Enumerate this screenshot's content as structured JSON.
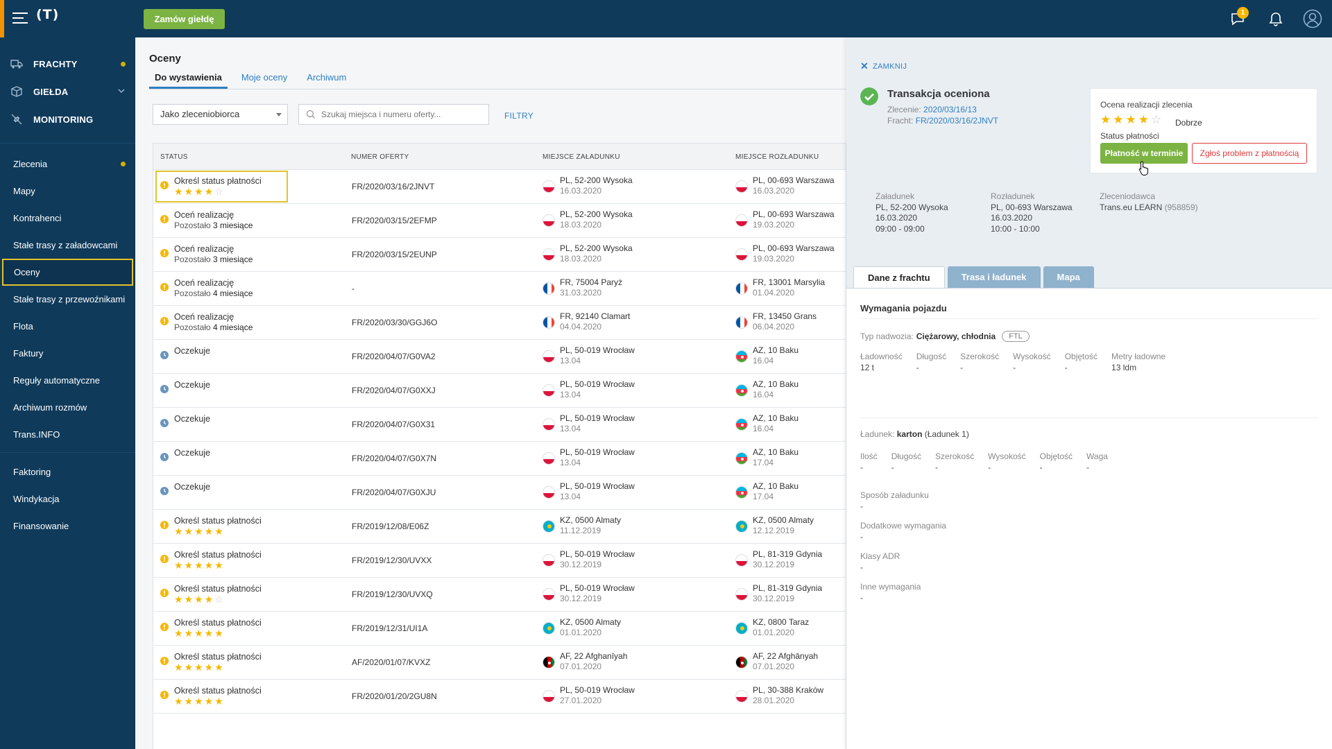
{
  "topbar": {
    "logo": "(T)",
    "order_button": "Zamów giełdę",
    "messages_badge": "1"
  },
  "sidebar": {
    "main": [
      {
        "label": "FRACHTY",
        "icon": "truck-icon",
        "dot": true
      },
      {
        "label": "GIEŁDA",
        "icon": "box-icon",
        "chevron": true
      },
      {
        "label": "MONITORING",
        "icon": "satellite-icon"
      }
    ],
    "sub1": [
      {
        "label": "Zlecenia",
        "dot": true
      },
      {
        "label": "Mapy"
      },
      {
        "label": "Kontrahenci"
      },
      {
        "label": "Stałe trasy z załadowcami"
      },
      {
        "label": "Oceny",
        "active": true
      },
      {
        "label": "Stałe trasy z przewoźnikami"
      },
      {
        "label": "Flota"
      },
      {
        "label": "Faktury"
      },
      {
        "label": "Reguły automatyczne"
      },
      {
        "label": "Archiwum rozmów"
      },
      {
        "label": "Trans.INFO"
      }
    ],
    "sub2": [
      {
        "label": "Faktoring"
      },
      {
        "label": "Windykacja"
      },
      {
        "label": "Finansowanie"
      }
    ]
  },
  "main": {
    "title": "Oceny",
    "tabs": [
      "Do wystawienia",
      "Moje oceny",
      "Archiwum"
    ],
    "select_value": "Jako zleceniobiorca",
    "search_placeholder": "Szukaj miejsca i numeru oferty...",
    "filters": "FILTRY",
    "columns": [
      "STATUS",
      "NUMER OFERTY",
      "MIEJSCE ZAŁADUNKU",
      "MIEJSCE ROZŁADUNKU"
    ],
    "rows": [
      {
        "kind": "warn",
        "status": "Określ status płatności",
        "stars": 4,
        "offer": "FR/2020/03/16/2JNVT",
        "load_flag": "pl",
        "load": "PL, 52-200 Wysoka",
        "load_date": "16.03.2020",
        "unload_flag": "pl",
        "unload": "PL, 00-693 Warszawa",
        "unload_date": "16.03.2020"
      },
      {
        "kind": "warn",
        "status": "Oceń realizację",
        "sub_prefix": "Pozostało",
        "sub_value": "3 miesiące",
        "offer": "FR/2020/03/15/2EFMP",
        "load_flag": "pl",
        "load": "PL, 52-200 Wysoka",
        "load_date": "18.03.2020",
        "unload_flag": "pl",
        "unload": "PL, 00-693 Warszawa",
        "unload_date": "19.03.2020"
      },
      {
        "kind": "warn",
        "status": "Oceń realizację",
        "sub_prefix": "Pozostało",
        "sub_value": "3 miesiące",
        "offer": "FR/2020/03/15/2EUNP",
        "load_flag": "pl",
        "load": "PL, 52-200 Wysoka",
        "load_date": "18.03.2020",
        "unload_flag": "pl",
        "unload": "PL, 00-693 Warszawa",
        "unload_date": "19.03.2020"
      },
      {
        "kind": "warn",
        "status": "Oceń realizację",
        "sub_prefix": "Pozostało",
        "sub_value": "4 miesiące",
        "offer": "-",
        "load_flag": "fr",
        "load": "FR, 75004 Paryż",
        "load_date": "31.03.2020",
        "unload_flag": "fr",
        "unload": "FR, 13001 Marsylia",
        "unload_date": "01.04.2020"
      },
      {
        "kind": "warn",
        "status": "Oceń realizację",
        "sub_prefix": "Pozostało",
        "sub_value": "4 miesiące",
        "offer": "FR/2020/03/30/GGJ6O",
        "load_flag": "fr",
        "load": "FR, 92140 Clamart",
        "load_date": "04.04.2020",
        "unload_flag": "fr",
        "unload": "FR, 13450 Grans",
        "unload_date": "06.04.2020"
      },
      {
        "kind": "clock",
        "status": "Oczekuje",
        "offer": "FR/2020/04/07/G0VA2",
        "load_flag": "pl",
        "load": "PL, 50-019 Wrocław",
        "load_date": "13.04",
        "unload_flag": "az",
        "unload": "AZ, 10 Baku",
        "unload_date": "16.04"
      },
      {
        "kind": "clock",
        "status": "Oczekuje",
        "offer": "FR/2020/04/07/G0XXJ",
        "load_flag": "pl",
        "load": "PL, 50-019 Wrocław",
        "load_date": "13.04",
        "unload_flag": "az",
        "unload": "AZ, 10 Baku",
        "unload_date": "16.04"
      },
      {
        "kind": "clock",
        "status": "Oczekuje",
        "offer": "FR/2020/04/07/G0X31",
        "load_flag": "pl",
        "load": "PL, 50-019 Wrocław",
        "load_date": "13.04",
        "unload_flag": "az",
        "unload": "AZ, 10 Baku",
        "unload_date": "16.04"
      },
      {
        "kind": "clock",
        "status": "Oczekuje",
        "offer": "FR/2020/04/07/G0X7N",
        "load_flag": "pl",
        "load": "PL, 50-019 Wrocław",
        "load_date": "13.04",
        "unload_flag": "az",
        "unload": "AZ, 10 Baku",
        "unload_date": "17.04"
      },
      {
        "kind": "clock",
        "status": "Oczekuje",
        "offer": "FR/2020/04/07/G0XJU",
        "load_flag": "pl",
        "load": "PL, 50-019 Wrocław",
        "load_date": "13.04",
        "unload_flag": "az",
        "unload": "AZ, 10 Baku",
        "unload_date": "17.04"
      },
      {
        "kind": "warn",
        "status": "Określ status płatności",
        "stars": 5,
        "offer": "FR/2019/12/08/E06Z",
        "load_flag": "kz",
        "load": "KZ, 0500 Almaty",
        "load_date": "11.12.2019",
        "unload_flag": "kz",
        "unload": "KZ, 0500 Almaty",
        "unload_date": "12.12.2019"
      },
      {
        "kind": "warn",
        "status": "Określ status płatności",
        "stars": 5,
        "offer": "FR/2019/12/30/UVXX",
        "load_flag": "pl",
        "load": "PL, 50-019 Wrocław",
        "load_date": "30.12.2019",
        "unload_flag": "pl",
        "unload": "PL, 81-319 Gdynia",
        "unload_date": "30.12.2019"
      },
      {
        "kind": "warn",
        "status": "Określ status płatności",
        "stars": 4,
        "offer": "FR/2019/12/30/UVXQ",
        "load_flag": "pl",
        "load": "PL, 50-019 Wrocław",
        "load_date": "30.12.2019",
        "unload_flag": "pl",
        "unload": "PL, 81-319 Gdynia",
        "unload_date": "30.12.2019"
      },
      {
        "kind": "warn",
        "status": "Określ status płatności",
        "stars": 5,
        "offer": "FR/2019/12/31/UI1A",
        "load_flag": "kz",
        "load": "KZ, 0500 Almaty",
        "load_date": "01.01.2020",
        "unload_flag": "kz",
        "unload": "KZ, 0800 Taraz",
        "unload_date": "01.01.2020"
      },
      {
        "kind": "warn",
        "status": "Określ status płatności",
        "stars": 5,
        "offer": "AF/2020/01/07/KVXZ",
        "load_flag": "af",
        "load": "AF, 22 Afghanīyah",
        "load_date": "07.01.2020",
        "unload_flag": "af",
        "unload": "AF, 22 Afghānyah",
        "unload_date": "07.01.2020"
      },
      {
        "kind": "warn",
        "status": "Określ status płatności",
        "stars": 5,
        "offer": "FR/2020/01/20/2GU8N",
        "load_flag": "pl",
        "load": "PL, 50-019 Wrocław",
        "load_date": "27.01.2020",
        "unload_flag": "pl",
        "unload": "PL, 30-388 Kraków",
        "unload_date": "28.01.2020"
      }
    ]
  },
  "panel": {
    "close": "ZAMKNIJ",
    "title": "Transakcja oceniona",
    "order_label": "Zlecenie:",
    "order_value": "2020/03/16/13",
    "freight_label": "Fracht:",
    "freight_value": "FR/2020/03/16/2JNVT",
    "rating_label": "Ocena realizacji zlecenia",
    "rating_stars": 4,
    "rating_word": "Dobrze",
    "payment_status_label": "Status płatności",
    "pay_button": "Płatność w terminie",
    "problem_button": "Zgłoś problem z płatnością",
    "loading_h": "Załadunek",
    "loading_place": "PL, 52-200 Wysoka",
    "loading_date": "16.03.2020",
    "loading_time": "09:00 - 09:00",
    "unloading_h": "Rozładunek",
    "unloading_place": "PL, 00-693 Warszawa",
    "unloading_date": "16.03.2020",
    "unloading_time": "10:00 - 10:00",
    "client_h": "Zleceniodawca",
    "client_name": "Trans.eu LEARN",
    "client_id": "(958859)",
    "tabs": [
      "Dane z frachtu",
      "Trasa i ładunek",
      "Mapa"
    ],
    "section_title": "Wymagania pojazdu",
    "body_type_label": "Typ nadwozia:",
    "body_type_value": "Ciężarowy, chłodnia",
    "ftl": "FTL",
    "vehicle_params": [
      {
        "k": "Ładowność",
        "v": "12 t"
      },
      {
        "k": "Długość",
        "v": "-"
      },
      {
        "k": "Szerokość",
        "v": "-"
      },
      {
        "k": "Wysokość",
        "v": "-"
      },
      {
        "k": "Objętość",
        "v": "-"
      },
      {
        "k": "Metry ładowne",
        "v": "13 ldm"
      }
    ],
    "cargo_label": "Ładunek:",
    "cargo_name": "karton",
    "cargo_extra": "(Ładunek 1)",
    "cargo_params": [
      {
        "k": "Ilość",
        "v": "-"
      },
      {
        "k": "Długość",
        "v": "-"
      },
      {
        "k": "Szerokość",
        "v": "-"
      },
      {
        "k": "Wysokość",
        "v": "-"
      },
      {
        "k": "Objętość",
        "v": "-"
      },
      {
        "k": "Waga",
        "v": "-"
      }
    ],
    "requirements": [
      {
        "k": "Sposób załadunku",
        "v": "-"
      },
      {
        "k": "Dodatkowe wymagania",
        "v": "-"
      },
      {
        "k": "Klasy ADR",
        "v": "-"
      },
      {
        "k": "Inne wymagania",
        "v": "-"
      }
    ]
  }
}
